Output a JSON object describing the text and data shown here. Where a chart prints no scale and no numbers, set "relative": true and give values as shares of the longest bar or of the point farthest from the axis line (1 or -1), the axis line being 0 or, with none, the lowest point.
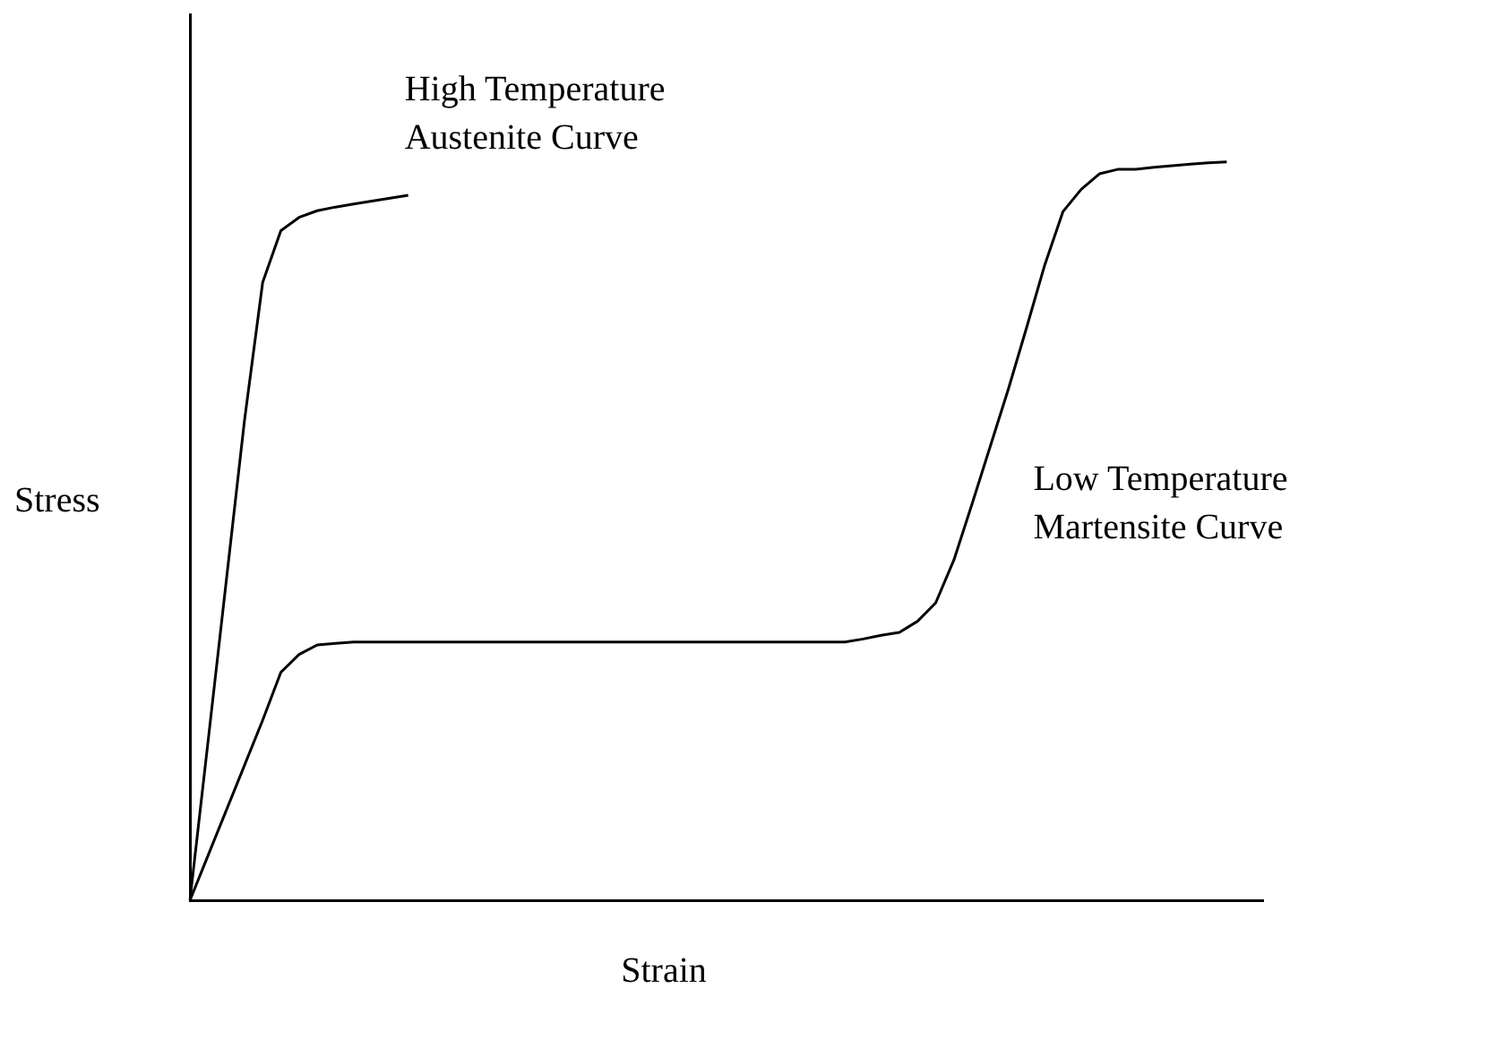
{
  "chart_data": {
    "type": "line",
    "xlabel": "Strain",
    "ylabel": "Stress",
    "relative": true,
    "marker": "none",
    "line_style": "solid",
    "categories": [
      null,
      null,
      null,
      null,
      null,
      null,
      null,
      null,
      null,
      null,
      null,
      null,
      null,
      null,
      null,
      null,
      null,
      null,
      null,
      null,
      null,
      null,
      null,
      null,
      null,
      null,
      null,
      null,
      null,
      null,
      null,
      null,
      null,
      null,
      null,
      null,
      null,
      null,
      null,
      null,
      null,
      null,
      null,
      null,
      null,
      null,
      null,
      null,
      null,
      null,
      null,
      null,
      null,
      null,
      null,
      null,
      null,
      null,
      null,
      null
    ],
    "series": [
      {
        "name": "High Temperature Austenite Curve",
        "color": "#000000",
        "values": [
          0,
          0.216,
          0.433,
          0.65,
          0.837,
          0.907,
          0.925,
          0.934,
          0.939,
          0.943,
          0.947,
          0.951,
          0.955,
          null,
          null,
          null,
          null,
          null,
          null,
          null,
          null,
          null,
          null,
          null,
          null,
          null,
          null,
          null,
          null,
          null,
          null,
          null,
          null,
          null,
          null,
          null,
          null,
          null,
          null,
          null,
          null,
          null,
          null,
          null,
          null,
          null,
          null,
          null,
          null,
          null,
          null,
          null,
          null,
          null,
          null,
          null,
          null,
          null,
          null,
          null
        ]
      },
      {
        "name": "Low Temperature Martensite Curve",
        "color": "#000000",
        "values": [
          0,
          0.061,
          0.122,
          0.183,
          0.244,
          0.309,
          0.333,
          0.346,
          0.348,
          0.35,
          0.35,
          0.35,
          0.35,
          0.35,
          0.35,
          0.35,
          0.35,
          0.35,
          0.35,
          0.35,
          0.35,
          0.35,
          0.35,
          0.35,
          0.35,
          0.35,
          0.35,
          0.35,
          0.35,
          0.35,
          0.35,
          0.35,
          0.35,
          0.35,
          0.35,
          0.35,
          0.35,
          0.354,
          0.359,
          0.363,
          0.378,
          0.403,
          0.461,
          0.537,
          0.615,
          0.693,
          0.776,
          0.861,
          0.933,
          0.963,
          0.984,
          0.99,
          0.99,
          0.993,
          0.995,
          0.997,
          0.999,
          1,
          null,
          null
        ]
      }
    ]
  }
}
